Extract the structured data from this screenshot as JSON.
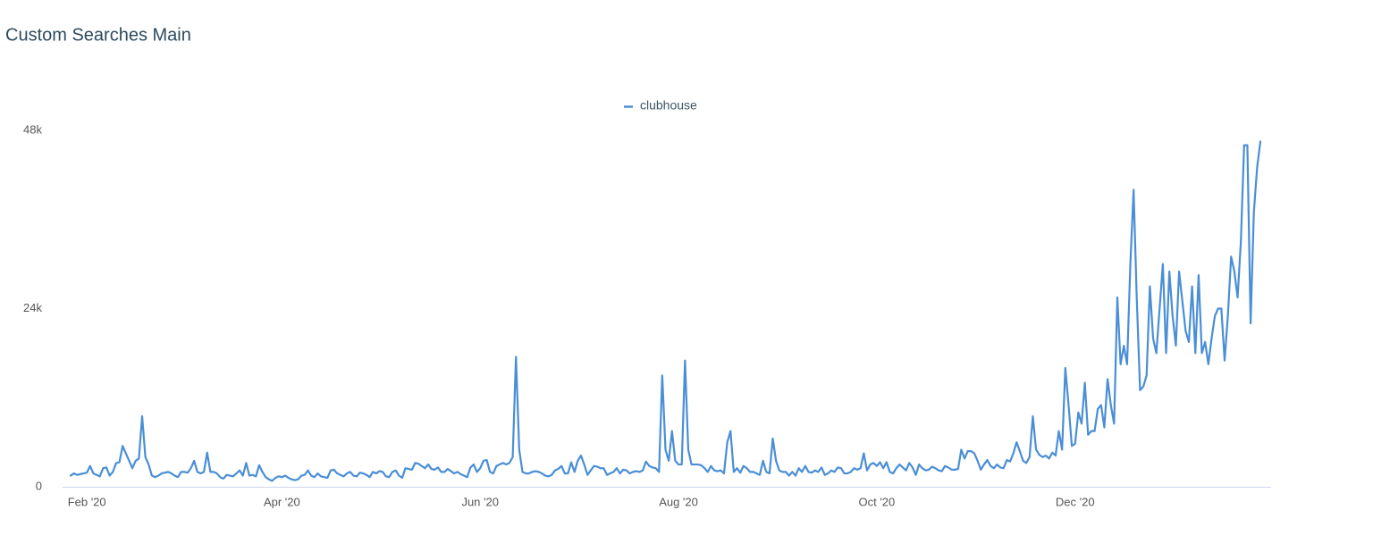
{
  "chart_data": {
    "type": "line",
    "title": "Custom Searches Main",
    "categories": [
      null,
      null,
      null,
      null,
      null,
      "Feb '20",
      null,
      null,
      null,
      null,
      null,
      null,
      null,
      null,
      null,
      null,
      null,
      null,
      null,
      null,
      null,
      null,
      null,
      null,
      null,
      null,
      null,
      null,
      null,
      null,
      null,
      null,
      null,
      null,
      null,
      null,
      null,
      null,
      null,
      null,
      null,
      null,
      null,
      null,
      null,
      null,
      null,
      null,
      null,
      null,
      null,
      null,
      null,
      null,
      null,
      null,
      null,
      null,
      null,
      null,
      null,
      null,
      null,
      null,
      null,
      "Apr '20",
      null,
      null,
      null,
      null,
      null,
      null,
      null,
      null,
      null,
      null,
      null,
      null,
      null,
      null,
      null,
      null,
      null,
      null,
      null,
      null,
      null,
      null,
      null,
      null,
      null,
      null,
      null,
      null,
      null,
      null,
      null,
      null,
      null,
      null,
      null,
      null,
      null,
      null,
      null,
      null,
      null,
      null,
      null,
      null,
      null,
      null,
      null,
      null,
      null,
      null,
      null,
      null,
      null,
      null,
      null,
      null,
      null,
      null,
      null,
      null,
      "Jun '20",
      null,
      null,
      null,
      null,
      null,
      null,
      null,
      null,
      null,
      null,
      null,
      null,
      null,
      null,
      null,
      null,
      null,
      null,
      null,
      null,
      null,
      null,
      null,
      null,
      null,
      null,
      null,
      null,
      null,
      null,
      null,
      null,
      null,
      null,
      null,
      null,
      null,
      null,
      null,
      null,
      null,
      null,
      null,
      null,
      null,
      null,
      null,
      null,
      null,
      null,
      null,
      null,
      null,
      null,
      null,
      null,
      null,
      null,
      null,
      null,
      "Aug '20",
      null,
      null,
      null,
      null,
      null,
      null,
      null,
      null,
      null,
      null,
      null,
      null,
      null,
      null,
      null,
      null,
      null,
      null,
      null,
      null,
      null,
      null,
      null,
      null,
      null,
      null,
      null,
      null,
      null,
      null,
      null,
      null,
      null,
      null,
      null,
      null,
      null,
      null,
      null,
      null,
      null,
      null,
      null,
      null,
      null,
      null,
      null,
      null,
      null,
      null,
      null,
      null,
      null,
      null,
      null,
      null,
      null,
      null,
      null,
      null,
      "Oct '20",
      null,
      null,
      null,
      null,
      null,
      null,
      null,
      null,
      null,
      null,
      null,
      null,
      null,
      null,
      null,
      null,
      null,
      null,
      null,
      null,
      null,
      null,
      null,
      null,
      null,
      null,
      null,
      null,
      null,
      null,
      null,
      null,
      null,
      null,
      null,
      null,
      null,
      null,
      null,
      null,
      null,
      null,
      null,
      null,
      null,
      null,
      null,
      null,
      null,
      null,
      null,
      null,
      null,
      null,
      null,
      null,
      null,
      null,
      null,
      null,
      "Dec '20",
      null,
      null,
      null,
      null,
      null,
      null,
      null,
      null,
      null,
      null,
      null,
      null,
      null,
      null,
      null,
      null,
      null,
      null,
      null,
      null,
      null,
      null,
      null,
      null,
      null,
      null,
      null,
      null,
      null,
      null,
      null,
      null,
      null,
      null,
      null,
      null,
      null,
      null,
      null,
      null,
      null,
      null,
      null,
      null,
      null,
      null,
      null,
      null,
      null,
      null,
      null,
      null,
      null,
      null,
      null,
      null,
      null
    ],
    "series": [
      {
        "name": "clubhouse",
        "color": "#4a8ed6",
        "values": [
          1500,
          1800,
          1600,
          1700,
          1800,
          1900,
          2800,
          1800,
          1600,
          1400,
          2500,
          2600,
          1500,
          2000,
          3200,
          3300,
          5500,
          4500,
          3500,
          2500,
          3500,
          3800,
          9500,
          4000,
          3000,
          1500,
          1300,
          1500,
          1800,
          1900,
          2000,
          1800,
          1500,
          1300,
          2000,
          2000,
          1900,
          2500,
          3500,
          2000,
          1800,
          2000,
          4600,
          2000,
          2000,
          1800,
          1300,
          1100,
          1600,
          1500,
          1400,
          1800,
          2200,
          1500,
          3200,
          1500,
          1600,
          1400,
          2900,
          2000,
          1300,
          1000,
          800,
          1200,
          1400,
          1300,
          1500,
          1200,
          1000,
          900,
          1000,
          1500,
          1600,
          2200,
          1500,
          1300,
          1800,
          1400,
          1300,
          1200,
          2200,
          2300,
          1800,
          1600,
          1400,
          1800,
          2000,
          1500,
          1400,
          1900,
          1800,
          1600,
          1300,
          2000,
          1800,
          2100,
          2000,
          1400,
          1300,
          2000,
          2200,
          1500,
          1200,
          2500,
          2400,
          2300,
          3200,
          3100,
          2800,
          2500,
          3000,
          2400,
          2300,
          2600,
          2000,
          2000,
          2400,
          2100,
          1800,
          2000,
          1700,
          1500,
          1300,
          2600,
          3000,
          2000,
          2500,
          3500,
          3600,
          2000,
          1800,
          2800,
          3000,
          3200,
          3000,
          3200,
          4000,
          17500,
          5000,
          2000,
          1800,
          1800,
          2000,
          2100,
          2000,
          1800,
          1500,
          1400,
          1600,
          2200,
          2400,
          2800,
          1800,
          1800,
          3300,
          2000,
          3500,
          4200,
          3000,
          1600,
          2200,
          2800,
          2700,
          2500,
          2500,
          1600,
          1800,
          2000,
          2500,
          1800,
          2300,
          2200,
          1800,
          2000,
          2100,
          2000,
          2200,
          3400,
          2800,
          2600,
          2500,
          2000,
          15000,
          5000,
          3500,
          7500,
          3500,
          3000,
          3000,
          17000,
          5000,
          3000,
          3000,
          3000,
          2900,
          2500,
          2000,
          2800,
          2200,
          2100,
          2200,
          1800,
          6000,
          7500,
          2000,
          2500,
          1900,
          2800,
          2500,
          2000,
          2000,
          1800,
          1600,
          3500,
          2000,
          1800,
          6500,
          3500,
          2200,
          2000,
          2000,
          1500,
          2000,
          1500,
          2500,
          2000,
          2800,
          2000,
          1900,
          2200,
          2000,
          2600,
          1600,
          1800,
          2200,
          2000,
          2600,
          2500,
          1800,
          1800,
          2000,
          2500,
          2300,
          2500,
          4500,
          2200,
          3000,
          3200,
          2800,
          3300,
          2500,
          3300,
          2000,
          1800,
          2500,
          3000,
          2600,
          2200,
          3200,
          2600,
          1600,
          3000,
          2500,
          2200,
          2300,
          2700,
          2500,
          2200,
          2100,
          2800,
          2600,
          2300,
          2300,
          2400,
          5000,
          3800,
          4800,
          4800,
          4500,
          3500,
          2300,
          3000,
          3600,
          2800,
          2500,
          3000,
          2600,
          2500,
          3600,
          3400,
          4500,
          6000,
          4800,
          3500,
          3200,
          4000,
          9500,
          5000,
          4300,
          4000,
          4200,
          3800,
          4600,
          4200,
          7500,
          5000,
          16000,
          11000,
          5500,
          5800,
          10000,
          8500,
          14000,
          7000,
          7500,
          7500,
          10500,
          11000,
          8000,
          14500,
          11000,
          8500,
          25500,
          16500,
          19000,
          16500,
          30000,
          40000,
          25000,
          13000,
          13500,
          15000,
          27000,
          20000,
          18000,
          24000,
          30000,
          18000,
          29000,
          23000,
          19000,
          29000,
          25000,
          21000,
          19500,
          27000,
          18000,
          28500,
          18000,
          19500,
          16500,
          20000,
          23000,
          24000,
          24000,
          17000,
          23000,
          31000,
          29000,
          25500,
          33000,
          46000,
          46000,
          22000,
          37000,
          43000,
          46500
        ]
      }
    ],
    "ylim": [
      0,
      48000
    ],
    "yticks": [
      {
        "value": 0,
        "label": "0"
      },
      {
        "value": 24000,
        "label": "24k"
      },
      {
        "value": 48000,
        "label": "48k"
      }
    ],
    "grid": false
  }
}
